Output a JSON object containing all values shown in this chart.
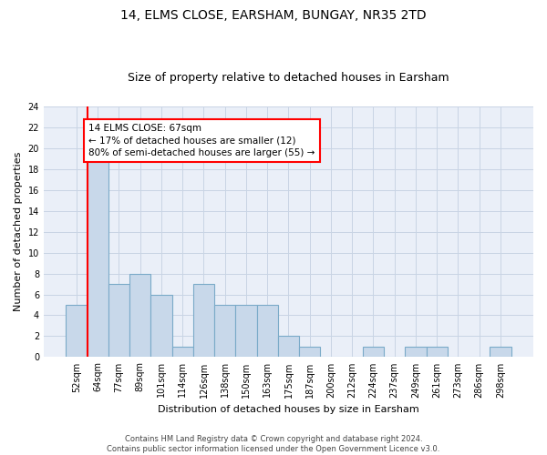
{
  "title": "14, ELMS CLOSE, EARSHAM, BUNGAY, NR35 2TD",
  "subtitle": "Size of property relative to detached houses in Earsham",
  "xlabel": "Distribution of detached houses by size in Earsham",
  "ylabel": "Number of detached properties",
  "categories": [
    "52sqm",
    "64sqm",
    "77sqm",
    "89sqm",
    "101sqm",
    "114sqm",
    "126sqm",
    "138sqm",
    "150sqm",
    "163sqm",
    "175sqm",
    "187sqm",
    "200sqm",
    "212sqm",
    "224sqm",
    "237sqm",
    "249sqm",
    "261sqm",
    "273sqm",
    "286sqm",
    "298sqm"
  ],
  "values": [
    5,
    20,
    7,
    8,
    6,
    1,
    7,
    5,
    5,
    5,
    2,
    1,
    0,
    0,
    1,
    0,
    1,
    1,
    0,
    0,
    1
  ],
  "bar_color": "#c8d8ea",
  "bar_edge_color": "#7aaac8",
  "bar_edge_width": 0.8,
  "grid_color": "#c8d4e4",
  "bg_color": "#eaeff8",
  "annotation_text": "14 ELMS CLOSE: 67sqm\n← 17% of detached houses are smaller (12)\n80% of semi-detached houses are larger (55) →",
  "annotation_box_color": "white",
  "annotation_box_edge_color": "red",
  "marker_color": "red",
  "ylim": [
    0,
    24
  ],
  "yticks": [
    0,
    2,
    4,
    6,
    8,
    10,
    12,
    14,
    16,
    18,
    20,
    22,
    24
  ],
  "footer": "Contains HM Land Registry data © Crown copyright and database right 2024.\nContains public sector information licensed under the Open Government Licence v3.0.",
  "title_fontsize": 10,
  "subtitle_fontsize": 9,
  "xlabel_fontsize": 8,
  "ylabel_fontsize": 8,
  "tick_fontsize": 7,
  "annotation_fontsize": 7.5,
  "footer_fontsize": 6
}
